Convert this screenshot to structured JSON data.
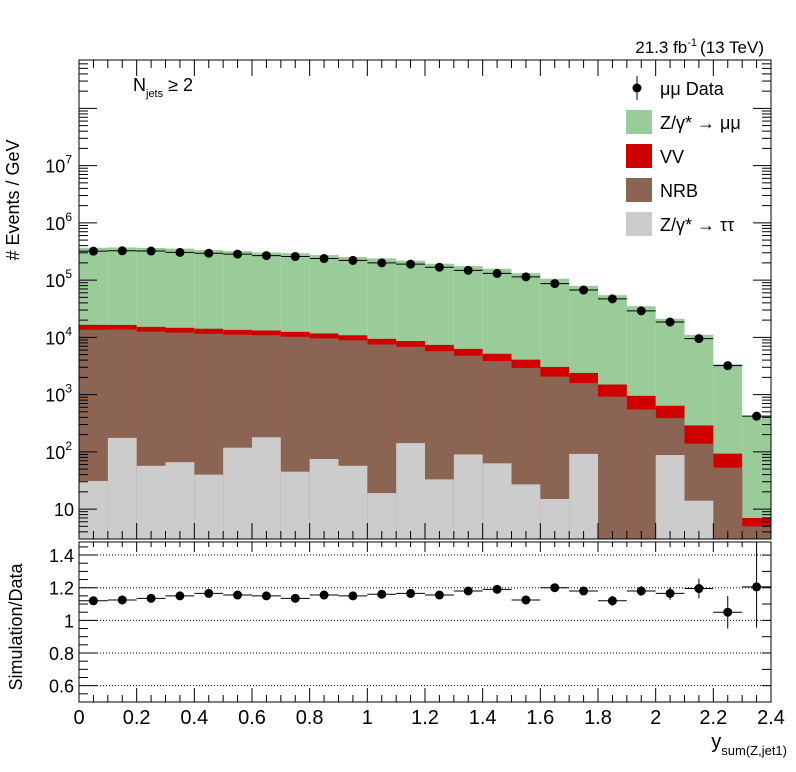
{
  "chart_data": {
    "type": "histogram-stack",
    "lumi_label": "21.3 fb",
    "lumi_exponent": "-1",
    "lumi_energy": "(13 TeV)",
    "annotation": {
      "base": "N",
      "sub": "jets",
      "rest": " ≥ 2"
    },
    "xlabel": {
      "base": "y",
      "sub": "sum(Z,jet1)"
    },
    "ylabel": "# Events / GeV",
    "ratio_ylabel": "Simulation/Data",
    "xlim": [
      0,
      2.4
    ],
    "ylim": [
      3,
      700000000
    ],
    "ratio_ylim": [
      0.5,
      1.48
    ],
    "log_y": true,
    "x_ticks": [
      "0",
      "0.2",
      "0.4",
      "0.6",
      "0.8",
      "1",
      "1.2",
      "1.4",
      "1.6",
      "1.8",
      "2",
      "2.2",
      "2.4"
    ],
    "y_ticks": [
      {
        "value": 10,
        "base": "10",
        "exp": ""
      },
      {
        "value": 100,
        "base": "10",
        "exp": "2"
      },
      {
        "value": 1000,
        "base": "10",
        "exp": "3"
      },
      {
        "value": 10000,
        "base": "10",
        "exp": "4"
      },
      {
        "value": 100000,
        "base": "10",
        "exp": "5"
      },
      {
        "value": 1000000,
        "base": "10",
        "exp": "6"
      },
      {
        "value": 10000000,
        "base": "10",
        "exp": "7"
      }
    ],
    "ratio_ticks": [
      "0.6",
      "0.8",
      "1",
      "1.2",
      "1.4"
    ],
    "bin_edges": [
      0,
      0.1,
      0.2,
      0.3,
      0.4,
      0.5,
      0.6,
      0.7,
      0.8,
      0.9,
      1.0,
      1.1,
      1.2,
      1.3,
      1.4,
      1.5,
      1.6,
      1.7,
      1.8,
      1.9,
      2.0,
      2.1,
      2.2,
      2.3,
      2.4
    ],
    "stack": [
      {
        "name": "Z/γ* → ττ",
        "color": "#cccccc",
        "values": [
          31,
          175,
          57,
          66,
          40,
          118,
          180,
          45,
          75,
          57,
          19,
          142,
          33,
          90,
          63,
          27,
          15,
          92,
          0,
          0,
          88,
          14,
          0,
          0
        ]
      },
      {
        "name": "NRB",
        "color": "#8b6454",
        "values": [
          13500,
          13500,
          12500,
          12000,
          11500,
          11000,
          10700,
          10200,
          9500,
          8800,
          7500,
          6700,
          5700,
          4700,
          3800,
          2900,
          2050,
          1500,
          920,
          550,
          300,
          125,
          53,
          5
        ]
      },
      {
        "name": "VV",
        "color": "#d00000",
        "values": [
          3000,
          2800,
          2700,
          2600,
          2600,
          2400,
          2300,
          2200,
          2100,
          2000,
          1900,
          1800,
          1650,
          1500,
          1300,
          1150,
          980,
          800,
          580,
          400,
          250,
          150,
          40,
          2
        ]
      },
      {
        "name": "Z/γ* → μμ",
        "color": "#99cc99",
        "values": [
          350000,
          355000,
          350000,
          340000,
          320000,
          308000,
          290000,
          283000,
          262000,
          242000,
          230000,
          210000,
          186000,
          169000,
          153000,
          128000,
          103000,
          77000,
          53000,
          34000,
          20500,
          10800,
          3300,
          420
        ]
      }
    ],
    "data": {
      "name": "μμ Data",
      "values": [
        320000,
        325000,
        322000,
        305000,
        295000,
        285000,
        268000,
        258000,
        238000,
        221000,
        200000,
        190000,
        168000,
        148000,
        131000,
        114000,
        87000,
        67000,
        47000,
        29000,
        18500,
        9500,
        3200,
        420
      ]
    },
    "ratio": {
      "values": [
        1.12,
        1.125,
        1.135,
        1.15,
        1.165,
        1.155,
        1.15,
        1.135,
        1.155,
        1.15,
        1.16,
        1.165,
        1.155,
        1.18,
        1.19,
        1.125,
        1.2,
        1.18,
        1.12,
        1.18,
        1.165,
        1.195,
        1.05,
        1.205
      ],
      "errors": [
        0.01,
        0.01,
        0.01,
        0.01,
        0.01,
        0.01,
        0.01,
        0.01,
        0.01,
        0.01,
        0.01,
        0.01,
        0.01,
        0.01,
        0.01,
        0.015,
        0.02,
        0.02,
        0.03,
        0.03,
        0.04,
        0.06,
        0.1,
        0.25
      ]
    },
    "legend_placement": "top-right",
    "legend": [
      {
        "label": "μμ Data",
        "kind": "marker"
      },
      {
        "label": "Z/γ* → μμ",
        "kind": "box",
        "color": "#99cc99"
      },
      {
        "label": "VV",
        "kind": "box",
        "color": "#d00000"
      },
      {
        "label": "NRB",
        "kind": "box",
        "color": "#8b6454"
      },
      {
        "label": "Z/γ* → ττ",
        "kind": "box",
        "color": "#cccccc"
      }
    ],
    "ratio_grid": true
  }
}
